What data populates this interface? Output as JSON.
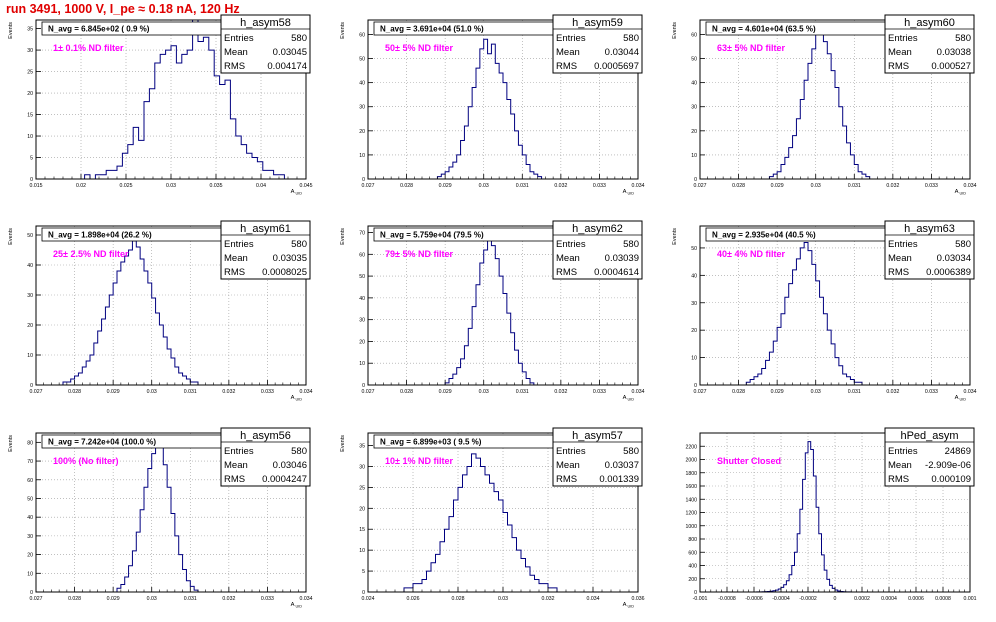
{
  "header": {
    "title": "run 3491,  1000 V, I_pe ≈ 0.18 nA, 120 Hz"
  },
  "colors": {
    "title": "#e00000",
    "annotation": "#ff00ff",
    "histogram": "#000080",
    "axis": "#000000",
    "grid": "#9a9a9a"
  },
  "chart_data": [
    {
      "type": "histogram",
      "name": "h_asym58",
      "ylabel": "Events",
      "xlabel": "A_UID",
      "stats": {
        "entries_label": "Entries",
        "entries": "580",
        "mean_label": "Mean",
        "mean": "0.03045",
        "rms_label": "RMS",
        "rms": "0.004174"
      },
      "nav": "N_avg = 6.845e+02 ( 0.9 %)",
      "annotation": "1± 0.1% ND filter",
      "xlim": [
        0.015,
        0.045
      ],
      "ylim": [
        0,
        37
      ],
      "xticks": [
        0.015,
        0.02,
        0.025,
        0.03,
        0.035,
        0.04,
        0.045
      ],
      "xticklabels": [
        "0.015",
        "0.02",
        "0.025",
        "0.03",
        "0.035",
        "0.04",
        "0.045"
      ],
      "yticks": [
        0,
        5,
        10,
        15,
        20,
        25,
        30,
        35
      ],
      "bins": {
        "start": 0.015,
        "width": 0.0006,
        "counts": [
          0,
          0,
          0,
          0,
          0,
          0,
          0,
          0,
          0,
          1,
          0,
          1,
          1,
          2,
          2,
          3,
          6,
          8,
          12,
          9,
          18,
          21,
          27,
          29,
          30,
          31,
          27,
          29,
          30,
          37,
          32,
          33,
          30,
          24,
          22,
          23,
          14,
          10,
          8,
          6,
          5,
          4,
          2,
          2,
          1,
          1,
          0,
          0,
          0,
          0
        ]
      }
    },
    {
      "type": "histogram",
      "name": "h_asym59",
      "ylabel": "Events",
      "xlabel": "A_UID",
      "stats": {
        "entries_label": "Entries",
        "entries": "580",
        "mean_label": "Mean",
        "mean": "0.03044",
        "rms_label": "RMS",
        "rms": "0.0005697"
      },
      "nav": "N_avg = 3.691e+04 (51.0 %)",
      "annotation": "50± 5% ND filter",
      "xlim": [
        0.027,
        0.034
      ],
      "ylim": [
        0,
        66
      ],
      "xticks": [
        0.027,
        0.028,
        0.029,
        0.03,
        0.031,
        0.032,
        0.033,
        0.034
      ],
      "xticklabels": [
        "0.027",
        "0.028",
        "0.029",
        "0.03",
        "0.031",
        "0.032",
        "0.033",
        "0.034"
      ],
      "yticks": [
        0,
        10,
        20,
        30,
        40,
        50,
        60
      ],
      "bins": {
        "start": 0.027,
        "width": 0.0001,
        "counts": [
          0,
          0,
          0,
          0,
          0,
          0,
          0,
          0,
          0,
          0,
          0,
          0,
          0,
          0,
          0,
          0,
          0,
          0,
          1,
          2,
          3,
          5,
          7,
          10,
          16,
          22,
          30,
          38,
          46,
          54,
          58,
          52,
          56,
          48,
          44,
          40,
          33,
          27,
          20,
          14,
          10,
          6,
          3,
          2,
          1,
          0,
          0,
          0,
          0,
          0,
          0,
          0,
          0,
          0,
          0,
          0,
          0,
          0,
          0,
          0,
          0,
          0,
          0,
          0,
          0,
          0,
          0,
          0,
          0,
          0
        ]
      }
    },
    {
      "type": "histogram",
      "name": "h_asym60",
      "ylabel": "Events",
      "xlabel": "A_UID",
      "stats": {
        "entries_label": "Entries",
        "entries": "580",
        "mean_label": "Mean",
        "mean": "0.03038",
        "rms_label": "RMS",
        "rms": "0.000527"
      },
      "nav": "N_avg = 4.601e+04 (63.5 %)",
      "annotation": "63± 5% ND filter",
      "xlim": [
        0.027,
        0.034
      ],
      "ylim": [
        0,
        66
      ],
      "xticks": [
        0.027,
        0.028,
        0.029,
        0.03,
        0.031,
        0.032,
        0.033,
        0.034
      ],
      "xticklabels": [
        "0.027",
        "0.028",
        "0.029",
        "0.03",
        "0.031",
        "0.032",
        "0.033",
        "0.034"
      ],
      "yticks": [
        0,
        10,
        20,
        30,
        40,
        50,
        60
      ],
      "bins": {
        "start": 0.027,
        "width": 0.0001,
        "counts": [
          0,
          0,
          0,
          0,
          0,
          0,
          0,
          0,
          0,
          0,
          0,
          0,
          0,
          0,
          0,
          0,
          0,
          0,
          1,
          2,
          3,
          6,
          9,
          13,
          18,
          25,
          33,
          41,
          48,
          54,
          60,
          62,
          57,
          52,
          45,
          38,
          30,
          22,
          15,
          10,
          6,
          3,
          2,
          1,
          0,
          0,
          0,
          0,
          0,
          0,
          0,
          0,
          0,
          0,
          0,
          0,
          0,
          0,
          0,
          0,
          0,
          0,
          0,
          0,
          0,
          0,
          0,
          0,
          0,
          0
        ]
      }
    },
    {
      "type": "histogram",
      "name": "h_asym61",
      "ylabel": "Events",
      "xlabel": "A_UID",
      "stats": {
        "entries_label": "Entries",
        "entries": "580",
        "mean_label": "Mean",
        "mean": "0.03035",
        "rms_label": "RMS",
        "rms": "0.0008025"
      },
      "nav": "N_avg = 1.898e+04 (26.2 %)",
      "annotation": "25± 2.5% ND filter",
      "xlim": [
        0.027,
        0.034
      ],
      "ylim": [
        0,
        53
      ],
      "xticks": [
        0.027,
        0.028,
        0.029,
        0.03,
        0.031,
        0.032,
        0.033,
        0.034
      ],
      "xticklabels": [
        "0.027",
        "0.028",
        "0.029",
        "0.03",
        "0.031",
        "0.032",
        "0.033",
        "0.034"
      ],
      "yticks": [
        0,
        10,
        20,
        30,
        40,
        50
      ],
      "bins": {
        "start": 0.027,
        "width": 0.0001,
        "counts": [
          0,
          0,
          0,
          0,
          0,
          0,
          0,
          1,
          1,
          2,
          3,
          4,
          6,
          8,
          10,
          14,
          18,
          22,
          26,
          30,
          34,
          38,
          41,
          43,
          45,
          48,
          46,
          42,
          38,
          34,
          29,
          24,
          20,
          16,
          12,
          9,
          6,
          4,
          3,
          2,
          1,
          1,
          0,
          0,
          0,
          0,
          0,
          0,
          0,
          0,
          0,
          0,
          0,
          0,
          0,
          0,
          0,
          0,
          0,
          0,
          0,
          0,
          0,
          0,
          0,
          0,
          0,
          0,
          0,
          0
        ]
      }
    },
    {
      "type": "histogram",
      "name": "h_asym62",
      "ylabel": "Events",
      "xlabel": "A_UID",
      "stats": {
        "entries_label": "Entries",
        "entries": "580",
        "mean_label": "Mean",
        "mean": "0.03039",
        "rms_label": "RMS",
        "rms": "0.0004614"
      },
      "nav": "N_avg = 5.759e+04 (79.5 %)",
      "annotation": "79± 5% ND filter",
      "xlim": [
        0.027,
        0.034
      ],
      "ylim": [
        0,
        73
      ],
      "xticks": [
        0.027,
        0.028,
        0.029,
        0.03,
        0.031,
        0.032,
        0.033,
        0.034
      ],
      "xticklabels": [
        "0.027",
        "0.028",
        "0.029",
        "0.03",
        "0.031",
        "0.032",
        "0.033",
        "0.034"
      ],
      "yticks": [
        0,
        10,
        20,
        30,
        40,
        50,
        60,
        70
      ],
      "bins": {
        "start": 0.027,
        "width": 0.0001,
        "counts": [
          0,
          0,
          0,
          0,
          0,
          0,
          0,
          0,
          0,
          0,
          0,
          0,
          0,
          0,
          0,
          0,
          0,
          0,
          0,
          0,
          1,
          3,
          5,
          8,
          12,
          18,
          26,
          36,
          46,
          56,
          62,
          68,
          64,
          58,
          50,
          42,
          33,
          24,
          16,
          10,
          6,
          3,
          1,
          0,
          0,
          0,
          0,
          0,
          0,
          0,
          0,
          0,
          0,
          0,
          0,
          0,
          0,
          0,
          0,
          0,
          0,
          0,
          0,
          0,
          0,
          0,
          0,
          0,
          0,
          0
        ]
      }
    },
    {
      "type": "histogram",
      "name": "h_asym63",
      "ylabel": "Events",
      "xlabel": "A_UID",
      "stats": {
        "entries_label": "Entries",
        "entries": "580",
        "mean_label": "Mean",
        "mean": "0.03034",
        "rms_label": "RMS",
        "rms": "0.0006389"
      },
      "nav": "N_avg = 2.935e+04 (40.5 %)",
      "annotation": "40± 4% ND filter",
      "xlim": [
        0.027,
        0.034
      ],
      "ylim": [
        0,
        58
      ],
      "xticks": [
        0.027,
        0.028,
        0.029,
        0.03,
        0.031,
        0.032,
        0.033,
        0.034
      ],
      "xticklabels": [
        "0.027",
        "0.028",
        "0.029",
        "0.03",
        "0.031",
        "0.032",
        "0.033",
        "0.034"
      ],
      "yticks": [
        0,
        10,
        20,
        30,
        40,
        50
      ],
      "bins": {
        "start": 0.027,
        "width": 0.0001,
        "counts": [
          0,
          0,
          0,
          0,
          0,
          0,
          0,
          0,
          0,
          0,
          0,
          0,
          1,
          2,
          3,
          4,
          6,
          9,
          12,
          16,
          21,
          26,
          32,
          37,
          42,
          46,
          50,
          52,
          49,
          44,
          38,
          32,
          26,
          20,
          15,
          10,
          7,
          4,
          3,
          2,
          1,
          1,
          0,
          0,
          0,
          0,
          0,
          0,
          0,
          0,
          0,
          0,
          0,
          0,
          0,
          0,
          0,
          0,
          0,
          0,
          0,
          0,
          0,
          0,
          0,
          0,
          0,
          0,
          0,
          0
        ]
      }
    },
    {
      "type": "histogram",
      "name": "h_asym56",
      "ylabel": "Events",
      "xlabel": "A_UID",
      "stats": {
        "entries_label": "Entries",
        "entries": "580",
        "mean_label": "Mean",
        "mean": "0.03046",
        "rms_label": "RMS",
        "rms": "0.0004247"
      },
      "nav": "N_avg = 7.242e+04 (100.0 %)",
      "annotation": "100% (No filter)",
      "xlim": [
        0.027,
        0.034
      ],
      "ylim": [
        0,
        85
      ],
      "xticks": [
        0.027,
        0.028,
        0.029,
        0.03,
        0.031,
        0.032,
        0.033,
        0.034
      ],
      "xticklabels": [
        "0.027",
        "0.028",
        "0.029",
        "0.03",
        "0.031",
        "0.032",
        "0.033",
        "0.034"
      ],
      "yticks": [
        0,
        10,
        20,
        30,
        40,
        50,
        60,
        70,
        80
      ],
      "bins": {
        "start": 0.027,
        "width": 0.0001,
        "counts": [
          0,
          0,
          0,
          0,
          0,
          0,
          0,
          0,
          0,
          0,
          0,
          0,
          0,
          0,
          0,
          0,
          0,
          0,
          0,
          0,
          0,
          2,
          4,
          8,
          14,
          22,
          32,
          44,
          56,
          66,
          74,
          80,
          78,
          68,
          56,
          42,
          30,
          20,
          12,
          6,
          3,
          1,
          0,
          0,
          0,
          0,
          0,
          0,
          0,
          0,
          0,
          0,
          0,
          0,
          0,
          0,
          0,
          0,
          0,
          0,
          0,
          0,
          0,
          0,
          0,
          0,
          0,
          0,
          0,
          0
        ]
      }
    },
    {
      "type": "histogram",
      "name": "h_asym57",
      "ylabel": "Events",
      "xlabel": "A_UID",
      "stats": {
        "entries_label": "Entries",
        "entries": "580",
        "mean_label": "Mean",
        "mean": "0.03037",
        "rms_label": "RMS",
        "rms": "0.001339"
      },
      "nav": "N_avg = 6.899e+03 ( 9.5 %)",
      "annotation": "10± 1% ND filter",
      "xlim": [
        0.024,
        0.036
      ],
      "ylim": [
        0,
        38
      ],
      "xticks": [
        0.024,
        0.026,
        0.028,
        0.03,
        0.032,
        0.034,
        0.036
      ],
      "xticklabels": [
        "0.024",
        "0.026",
        "0.028",
        "0.03",
        "0.032",
        "0.034",
        "0.036"
      ],
      "yticks": [
        0,
        5,
        10,
        15,
        20,
        25,
        30,
        35
      ],
      "bins": {
        "start": 0.024,
        "width": 0.0002,
        "counts": [
          0,
          0,
          0,
          0,
          0,
          0,
          0,
          0,
          1,
          1,
          2,
          2,
          3,
          5,
          7,
          9,
          12,
          15,
          18,
          22,
          25,
          28,
          30,
          33,
          32,
          30,
          28,
          26,
          24,
          22,
          19,
          16,
          13,
          10,
          8,
          6,
          4,
          3,
          2,
          2,
          1,
          1,
          0,
          0,
          0,
          0,
          0,
          0,
          0,
          0,
          0,
          0,
          0,
          0,
          0,
          0,
          0,
          0,
          0,
          0
        ]
      }
    },
    {
      "type": "histogram",
      "name": "hPed_asym",
      "ylabel": "",
      "xlabel": "",
      "stats": {
        "entries_label": "Entries",
        "entries": "24869",
        "mean_label": "Mean",
        "mean": "-2.909e-06",
        "rms_label": "RMS",
        "rms": "0.000109"
      },
      "nav": "",
      "annotation": "Shutter Closed",
      "xlim": [
        -0.001,
        0.001
      ],
      "ylim": [
        0,
        2400
      ],
      "xticks": [
        -0.001,
        -0.0008,
        -0.0006,
        -0.0004,
        -0.0002,
        0,
        0.0002,
        0.0004,
        0.0006,
        0.0008,
        0.001
      ],
      "xticklabels": [
        "-0.001",
        "-0.0008",
        "-0.0006",
        "-0.0004",
        "-0.0002",
        "0",
        "0.0002",
        "0.0004",
        "0.0006",
        "0.0008",
        "0.001"
      ],
      "yticks": [
        0,
        200,
        400,
        600,
        800,
        1000,
        1200,
        1400,
        1600,
        1800,
        2000,
        2200
      ],
      "bins": {
        "start": -0.001,
        "width": 2e-05,
        "counts": [
          0,
          0,
          0,
          0,
          0,
          0,
          0,
          0,
          0,
          0,
          0,
          0,
          0,
          0,
          0,
          0,
          0,
          0,
          0,
          0,
          0,
          1,
          2,
          3,
          5,
          8,
          12,
          18,
          28,
          45,
          70,
          110,
          170,
          260,
          400,
          600,
          880,
          1250,
          1700,
          2100,
          2270,
          2150,
          1750,
          1280,
          880,
          560,
          330,
          190,
          100,
          55,
          30,
          16,
          8,
          4,
          2,
          1,
          0,
          0,
          0,
          0,
          0,
          0,
          0,
          0,
          0,
          0,
          0,
          0,
          0,
          0,
          0,
          0,
          0,
          0,
          0,
          0,
          0,
          0,
          0,
          0,
          0,
          0,
          0,
          0,
          0,
          0,
          0,
          0,
          0,
          0,
          0,
          0,
          0,
          0,
          0,
          0,
          0,
          0,
          0,
          0
        ]
      }
    }
  ]
}
